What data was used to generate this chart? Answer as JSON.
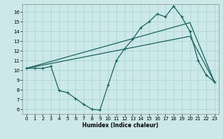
{
  "xlabel": "Humidex (Indice chaleur)",
  "ylabel": "",
  "bg_color": "#cce8e8",
  "line_color": "#1a6060",
  "grid_color": "#b0d8d8",
  "xlim": [
    -0.5,
    23.5
  ],
  "ylim": [
    5.5,
    16.8
  ],
  "yticks": [
    6,
    7,
    8,
    9,
    10,
    11,
    12,
    13,
    14,
    15,
    16
  ],
  "xticks": [
    0,
    1,
    2,
    3,
    4,
    5,
    6,
    7,
    8,
    9,
    10,
    11,
    12,
    13,
    14,
    15,
    16,
    17,
    18,
    19,
    20,
    21,
    22,
    23
  ],
  "line1_x": [
    0,
    1,
    2,
    3,
    4,
    5,
    6,
    7,
    8,
    9,
    10,
    11,
    12,
    13,
    14,
    15,
    16,
    17,
    18,
    19,
    20,
    21,
    22,
    23
  ],
  "line1_y": [
    10.2,
    10.2,
    10.2,
    10.4,
    7.9,
    7.7,
    7.1,
    6.5,
    6.0,
    5.9,
    8.5,
    11.0,
    12.2,
    13.2,
    14.4,
    15.0,
    15.8,
    15.5,
    16.6,
    15.5,
    14.0,
    11.0,
    9.5,
    8.8
  ],
  "line2_x": [
    0,
    20,
    23
  ],
  "line2_y": [
    10.2,
    14.9,
    8.8
  ],
  "line3_x": [
    0,
    20,
    23
  ],
  "line3_y": [
    10.2,
    13.5,
    8.8
  ],
  "figwidth": 3.2,
  "figheight": 2.0,
  "dpi": 100
}
